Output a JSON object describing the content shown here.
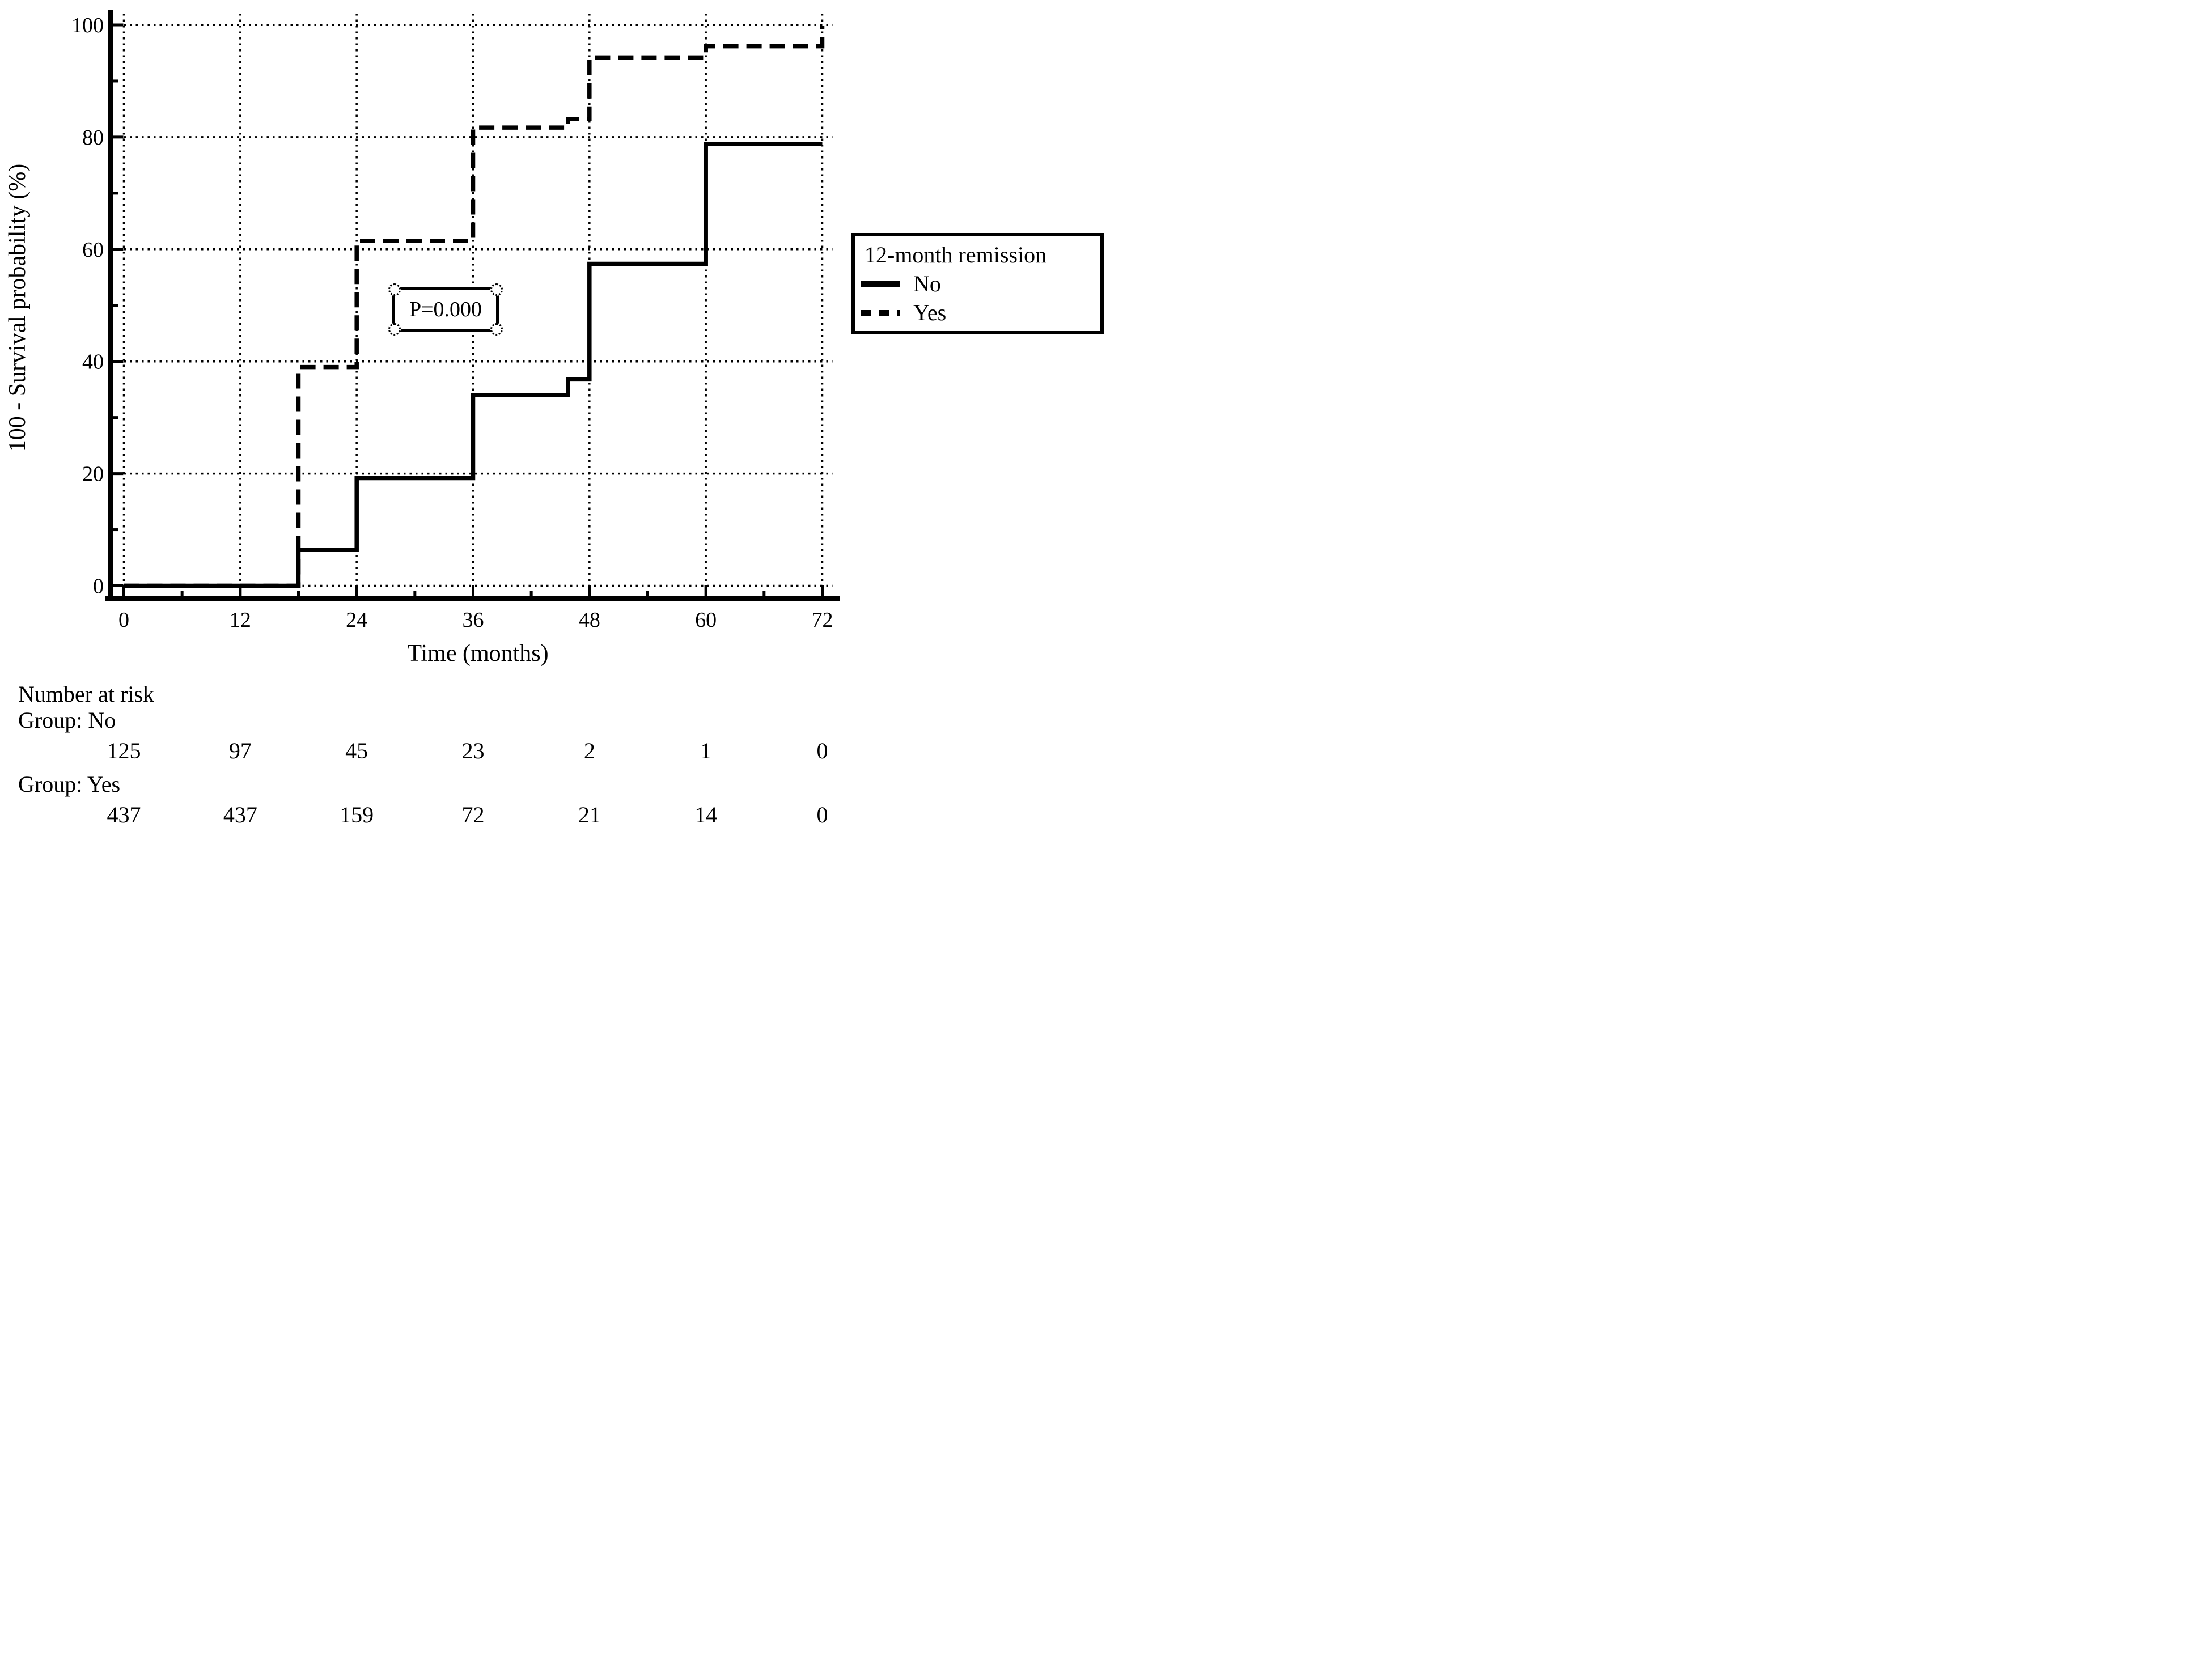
{
  "figure": {
    "background": "#ffffff",
    "ink_color": "#000000"
  },
  "chart_data": {
    "type": "line",
    "subtype": "step-survival",
    "title": "",
    "xlabel": "Time (months)",
    "ylabel": "100 - Survival probability (%)",
    "xlim": [
      0,
      72
    ],
    "ylim": [
      0,
      100
    ],
    "x_ticks": [
      0,
      12,
      24,
      36,
      48,
      60,
      72
    ],
    "x_minor_ticks": [
      6,
      18,
      30,
      42,
      54,
      66
    ],
    "y_ticks": [
      0,
      20,
      40,
      60,
      80,
      100
    ],
    "y_minor_ticks": [
      10,
      30,
      50,
      70,
      90
    ],
    "grid": "dotted",
    "legend_position": "right",
    "series": [
      {
        "name": "No",
        "line_style": "solid",
        "points": [
          [
            0,
            0
          ],
          [
            18,
            0
          ],
          [
            18,
            6.4
          ],
          [
            24,
            6.4
          ],
          [
            24,
            19.2
          ],
          [
            36,
            19.2
          ],
          [
            36,
            34
          ],
          [
            45.8,
            34
          ],
          [
            45.8,
            36.8
          ],
          [
            48,
            36.8
          ],
          [
            48,
            57.4
          ],
          [
            60,
            57.4
          ],
          [
            60,
            78.8
          ],
          [
            72,
            78.8
          ]
        ]
      },
      {
        "name": "Yes",
        "line_style": "dashed",
        "points": [
          [
            0,
            0
          ],
          [
            18,
            0
          ],
          [
            18,
            39
          ],
          [
            24,
            39
          ],
          [
            24,
            61.5
          ],
          [
            36,
            61.5
          ],
          [
            36,
            81.7
          ],
          [
            45.8,
            81.7
          ],
          [
            45.8,
            83.2
          ],
          [
            48,
            83.2
          ],
          [
            48,
            94.2
          ],
          [
            60,
            94.2
          ],
          [
            60,
            96.2
          ],
          [
            72,
            96.2
          ],
          [
            72,
            99.8
          ]
        ]
      }
    ]
  },
  "legend": {
    "title": "12-month remission",
    "entries": [
      {
        "label": "No",
        "style": "solid"
      },
      {
        "label": "Yes",
        "style": "dashed"
      }
    ]
  },
  "annotation": {
    "text": "P=0.000"
  },
  "number_at_risk": {
    "heading": "Number at risk",
    "groups": [
      {
        "label": "Group: No",
        "counts": [
          "125",
          "97",
          "45",
          "23",
          "2",
          "1",
          "0"
        ]
      },
      {
        "label": "Group: Yes",
        "counts": [
          "437",
          "437",
          "159",
          "72",
          "21",
          "14",
          "0"
        ]
      }
    ]
  }
}
